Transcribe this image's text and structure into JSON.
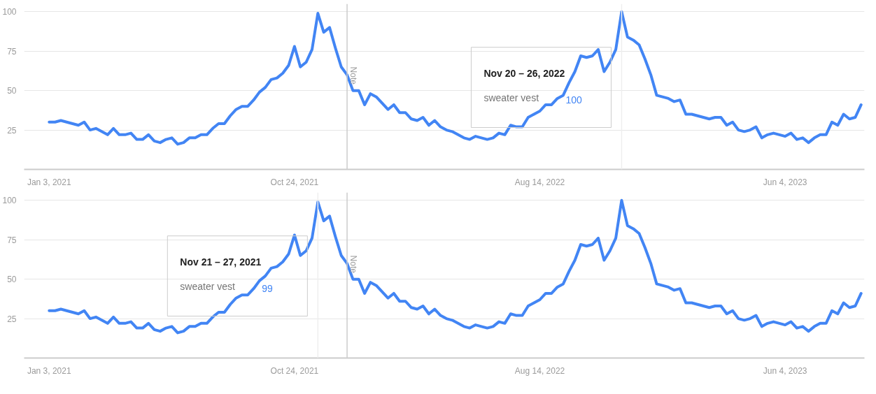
{
  "chart_data": [
    {
      "type": "line",
      "x": [
        "2021-01-03",
        "2021-01-10",
        "2021-01-17",
        "2021-01-24",
        "2021-01-31",
        "2021-02-07",
        "2021-02-14",
        "2021-02-21",
        "2021-02-28",
        "2021-03-07",
        "2021-03-14",
        "2021-03-21",
        "2021-03-28",
        "2021-04-04",
        "2021-04-11",
        "2021-04-18",
        "2021-04-25",
        "2021-05-02",
        "2021-05-09",
        "2021-05-16",
        "2021-05-23",
        "2021-05-30",
        "2021-06-06",
        "2021-06-13",
        "2021-06-20",
        "2021-06-27",
        "2021-07-04",
        "2021-07-11",
        "2021-07-18",
        "2021-07-25",
        "2021-08-01",
        "2021-08-08",
        "2021-08-15",
        "2021-08-22",
        "2021-08-29",
        "2021-09-05",
        "2021-09-12",
        "2021-09-19",
        "2021-09-26",
        "2021-10-03",
        "2021-10-10",
        "2021-10-17",
        "2021-10-24",
        "2021-10-31",
        "2021-11-07",
        "2021-11-14",
        "2021-11-21",
        "2021-11-28",
        "2021-12-05",
        "2021-12-12",
        "2021-12-19",
        "2021-12-26",
        "2022-01-02",
        "2022-01-09",
        "2022-01-16",
        "2022-01-23",
        "2022-01-30",
        "2022-02-06",
        "2022-02-13",
        "2022-02-20",
        "2022-02-27",
        "2022-03-06",
        "2022-03-13",
        "2022-03-20",
        "2022-03-27",
        "2022-04-03",
        "2022-04-10",
        "2022-04-17",
        "2022-04-24",
        "2022-05-01",
        "2022-05-08",
        "2022-05-15",
        "2022-05-22",
        "2022-05-29",
        "2022-06-05",
        "2022-06-12",
        "2022-06-19",
        "2022-06-26",
        "2022-07-03",
        "2022-07-10",
        "2022-07-17",
        "2022-07-24",
        "2022-07-31",
        "2022-08-07",
        "2022-08-14",
        "2022-08-21",
        "2022-08-28",
        "2022-09-04",
        "2022-09-11",
        "2022-09-18",
        "2022-09-25",
        "2022-10-02",
        "2022-10-09",
        "2022-10-16",
        "2022-10-23",
        "2022-10-30",
        "2022-11-06",
        "2022-11-13",
        "2022-11-20",
        "2022-11-27",
        "2022-12-04",
        "2022-12-11",
        "2022-12-18",
        "2022-12-25",
        "2023-01-01",
        "2023-01-08",
        "2023-01-15",
        "2023-01-22",
        "2023-01-29",
        "2023-02-05",
        "2023-02-12",
        "2023-02-19",
        "2023-02-26",
        "2023-03-05",
        "2023-03-12",
        "2023-03-19",
        "2023-03-26",
        "2023-04-02",
        "2023-04-09",
        "2023-04-16",
        "2023-04-23",
        "2023-04-30",
        "2023-05-07",
        "2023-05-14",
        "2023-05-21",
        "2023-05-28",
        "2023-06-04",
        "2023-06-11",
        "2023-06-18",
        "2023-06-25",
        "2023-07-02",
        "2023-07-09",
        "2023-07-16",
        "2023-07-23",
        "2023-07-30",
        "2023-08-06",
        "2023-08-13",
        "2023-08-20",
        "2023-08-27",
        "2023-09-03"
      ],
      "series": [
        {
          "name": "sweater vest",
          "color": "#4285f4",
          "values": [
            30,
            30,
            31,
            30,
            29,
            28,
            30,
            25,
            26,
            24,
            22,
            26,
            22,
            22,
            23,
            19,
            19,
            22,
            18,
            17,
            19,
            20,
            16,
            17,
            20,
            20,
            22,
            22,
            26,
            29,
            29,
            34,
            38,
            40,
            40,
            44,
            49,
            52,
            57,
            58,
            61,
            66,
            78,
            65,
            68,
            76,
            99,
            87,
            90,
            77,
            65,
            60,
            50,
            50,
            41,
            48,
            46,
            42,
            38,
            41,
            36,
            36,
            32,
            31,
            33,
            28,
            31,
            27,
            25,
            24,
            22,
            20,
            19,
            21,
            20,
            19,
            20,
            23,
            22,
            28,
            27,
            27,
            33,
            35,
            37,
            41,
            41,
            45,
            47,
            55,
            62,
            72,
            71,
            72,
            76,
            62,
            68,
            76,
            100,
            84,
            82,
            79,
            70,
            60,
            47,
            46,
            45,
            43,
            44,
            35,
            35,
            34,
            33,
            32,
            33,
            33,
            28,
            30,
            25,
            24,
            25,
            27,
            20,
            22,
            23,
            22,
            21,
            23,
            19,
            20,
            17,
            20,
            22,
            22,
            30,
            28,
            35,
            32,
            33,
            41
          ]
        }
      ],
      "xlim": [
        "2020-12-04",
        "2023-09-07"
      ],
      "xticks": [
        {
          "value": "2021-01-03",
          "label": "Jan 3, 2021"
        },
        {
          "value": "2021-10-24",
          "label": "Oct 24, 2021"
        },
        {
          "value": "2022-08-14",
          "label": "Aug 14, 2022"
        },
        {
          "value": "2023-06-04",
          "label": "Jun 4, 2023"
        }
      ],
      "ylim": [
        0,
        105
      ],
      "yticks": [
        25,
        50,
        75,
        100
      ],
      "grid": "y",
      "ref_lines": [
        {
          "axis": "x",
          "value": "2021-12-26",
          "label": "Note",
          "color": "#cccccc"
        },
        {
          "axis": "x",
          "value": "2022-11-20",
          "label": null,
          "color": "#eeeeee"
        }
      ],
      "annotations": [
        "Nov 20 – 26, 2022",
        "100"
      ]
    },
    {
      "type": "line",
      "x": [
        "2021-01-03",
        "2021-01-10",
        "2021-01-17",
        "2021-01-24",
        "2021-01-31",
        "2021-02-07",
        "2021-02-14",
        "2021-02-21",
        "2021-02-28",
        "2021-03-07",
        "2021-03-14",
        "2021-03-21",
        "2021-03-28",
        "2021-04-04",
        "2021-04-11",
        "2021-04-18",
        "2021-04-25",
        "2021-05-02",
        "2021-05-09",
        "2021-05-16",
        "2021-05-23",
        "2021-05-30",
        "2021-06-06",
        "2021-06-13",
        "2021-06-20",
        "2021-06-27",
        "2021-07-04",
        "2021-07-11",
        "2021-07-18",
        "2021-07-25",
        "2021-08-01",
        "2021-08-08",
        "2021-08-15",
        "2021-08-22",
        "2021-08-29",
        "2021-09-05",
        "2021-09-12",
        "2021-09-19",
        "2021-09-26",
        "2021-10-03",
        "2021-10-10",
        "2021-10-17",
        "2021-10-24",
        "2021-10-31",
        "2021-11-07",
        "2021-11-14",
        "2021-11-21",
        "2021-11-28",
        "2021-12-05",
        "2021-12-12",
        "2021-12-19",
        "2021-12-26",
        "2022-01-02",
        "2022-01-09",
        "2022-01-16",
        "2022-01-23",
        "2022-01-30",
        "2022-02-06",
        "2022-02-13",
        "2022-02-20",
        "2022-02-27",
        "2022-03-06",
        "2022-03-13",
        "2022-03-20",
        "2022-03-27",
        "2022-04-03",
        "2022-04-10",
        "2022-04-17",
        "2022-04-24",
        "2022-05-01",
        "2022-05-08",
        "2022-05-15",
        "2022-05-22",
        "2022-05-29",
        "2022-06-05",
        "2022-06-12",
        "2022-06-19",
        "2022-06-26",
        "2022-07-03",
        "2022-07-10",
        "2022-07-17",
        "2022-07-24",
        "2022-07-31",
        "2022-08-07",
        "2022-08-14",
        "2022-08-21",
        "2022-08-28",
        "2022-09-04",
        "2022-09-11",
        "2022-09-18",
        "2022-09-25",
        "2022-10-02",
        "2022-10-09",
        "2022-10-16",
        "2022-10-23",
        "2022-10-30",
        "2022-11-06",
        "2022-11-13",
        "2022-11-20",
        "2022-11-27",
        "2022-12-04",
        "2022-12-11",
        "2022-12-18",
        "2022-12-25",
        "2023-01-01",
        "2023-01-08",
        "2023-01-15",
        "2023-01-22",
        "2023-01-29",
        "2023-02-05",
        "2023-02-12",
        "2023-02-19",
        "2023-02-26",
        "2023-03-05",
        "2023-03-12",
        "2023-03-19",
        "2023-03-26",
        "2023-04-02",
        "2023-04-09",
        "2023-04-16",
        "2023-04-23",
        "2023-04-30",
        "2023-05-07",
        "2023-05-14",
        "2023-05-21",
        "2023-05-28",
        "2023-06-04",
        "2023-06-11",
        "2023-06-18",
        "2023-06-25",
        "2023-07-02",
        "2023-07-09",
        "2023-07-16",
        "2023-07-23",
        "2023-07-30",
        "2023-08-06",
        "2023-08-13",
        "2023-08-20",
        "2023-08-27",
        "2023-09-03"
      ],
      "series": [
        {
          "name": "sweater vest",
          "color": "#4285f4",
          "values": [
            30,
            30,
            31,
            30,
            29,
            28,
            30,
            25,
            26,
            24,
            22,
            26,
            22,
            22,
            23,
            19,
            19,
            22,
            18,
            17,
            19,
            20,
            16,
            17,
            20,
            20,
            22,
            22,
            26,
            29,
            29,
            34,
            38,
            40,
            40,
            44,
            49,
            52,
            57,
            58,
            61,
            66,
            78,
            65,
            68,
            76,
            99,
            87,
            90,
            77,
            65,
            60,
            50,
            50,
            41,
            48,
            46,
            42,
            38,
            41,
            36,
            36,
            32,
            31,
            33,
            28,
            31,
            27,
            25,
            24,
            22,
            20,
            19,
            21,
            20,
            19,
            20,
            23,
            22,
            28,
            27,
            27,
            33,
            35,
            37,
            41,
            41,
            45,
            47,
            55,
            62,
            72,
            71,
            72,
            76,
            62,
            68,
            76,
            100,
            84,
            82,
            79,
            70,
            60,
            47,
            46,
            45,
            43,
            44,
            35,
            35,
            34,
            33,
            32,
            33,
            33,
            28,
            30,
            25,
            24,
            25,
            27,
            20,
            22,
            23,
            22,
            21,
            23,
            19,
            20,
            17,
            20,
            22,
            22,
            30,
            28,
            35,
            32,
            33,
            41
          ]
        }
      ],
      "xlim": [
        "2020-12-04",
        "2023-09-07"
      ],
      "xticks": [
        {
          "value": "2021-01-03",
          "label": "Jan 3, 2021"
        },
        {
          "value": "2021-10-24",
          "label": "Oct 24, 2021"
        },
        {
          "value": "2022-08-14",
          "label": "Aug 14, 2022"
        },
        {
          "value": "2023-06-04",
          "label": "Jun 4, 2023"
        }
      ],
      "ylim": [
        0,
        105
      ],
      "yticks": [
        25,
        50,
        75,
        100
      ],
      "grid": "y",
      "ref_lines": [
        {
          "axis": "x",
          "value": "2021-12-26",
          "label": "Note",
          "color": "#cccccc"
        },
        {
          "axis": "x",
          "value": "2021-11-21",
          "label": null,
          "color": "#eeeeee"
        }
      ],
      "annotations": [
        "Nov 21 – 27, 2021",
        "99"
      ]
    }
  ]
}
